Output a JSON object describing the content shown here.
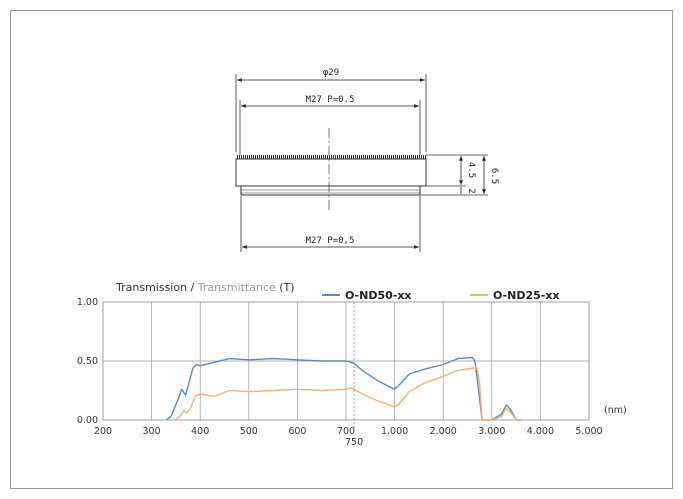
{
  "drawing": {
    "outer_diameter": "φ29",
    "thread_top": "M27 P=0.5",
    "thread_bottom": "M27 P=0,5",
    "height_total": "6.5",
    "height_body": "4.5",
    "height_thread": "2"
  },
  "chart_data": {
    "type": "line",
    "title": {
      "part1": "Transmission",
      "separator": " / ",
      "part2": "Transmittance",
      "part3": " (T)"
    },
    "xlabel": "(nm)",
    "x_ticks": [
      "200",
      "300",
      "400",
      "500",
      "600",
      "700",
      "1.000",
      "2.000",
      "3.000",
      "4.000",
      "5.000"
    ],
    "extra_tick": "750",
    "y_ticks": [
      "1.00",
      "0.50",
      "0.00"
    ],
    "ylim": [
      0,
      1
    ],
    "grid": true,
    "legend_position": "top",
    "series": [
      {
        "name": "O-ND50-xx",
        "color": "#5b8ac1",
        "x": [
          330,
          340,
          355,
          362,
          370,
          378,
          385,
          392,
          400,
          430,
          460,
          500,
          550,
          600,
          650,
          700,
          730,
          750,
          800,
          900,
          1000,
          1100,
          1300,
          1600,
          2000,
          2300,
          2600,
          2650,
          2700,
          2800,
          3000,
          3200,
          3300,
          3400,
          3500,
          3600
        ],
        "y": [
          0.0,
          0.03,
          0.18,
          0.26,
          0.21,
          0.33,
          0.44,
          0.47,
          0.46,
          0.49,
          0.52,
          0.51,
          0.52,
          0.51,
          0.5,
          0.5,
          0.49,
          0.48,
          0.42,
          0.33,
          0.26,
          0.3,
          0.39,
          0.43,
          0.47,
          0.52,
          0.53,
          0.5,
          0.35,
          0.0,
          0.0,
          0.05,
          0.13,
          0.08,
          0.0,
          0.0
        ]
      },
      {
        "name": "O-ND25-xx",
        "color": "#f2b27a",
        "x": [
          350,
          360,
          367,
          373,
          380,
          390,
          400,
          430,
          460,
          500,
          550,
          600,
          650,
          700,
          730,
          750,
          800,
          900,
          1000,
          1100,
          1300,
          1600,
          2000,
          2300,
          2600,
          2700,
          2750,
          2800,
          3000,
          3200,
          3300,
          3400,
          3500,
          3600
        ],
        "y": [
          0.0,
          0.04,
          0.08,
          0.06,
          0.1,
          0.2,
          0.22,
          0.2,
          0.25,
          0.24,
          0.25,
          0.26,
          0.25,
          0.26,
          0.27,
          0.26,
          0.22,
          0.16,
          0.11,
          0.14,
          0.24,
          0.31,
          0.37,
          0.42,
          0.44,
          0.44,
          0.3,
          0.0,
          0.0,
          0.03,
          0.1,
          0.06,
          0.0,
          0.0
        ]
      }
    ]
  }
}
